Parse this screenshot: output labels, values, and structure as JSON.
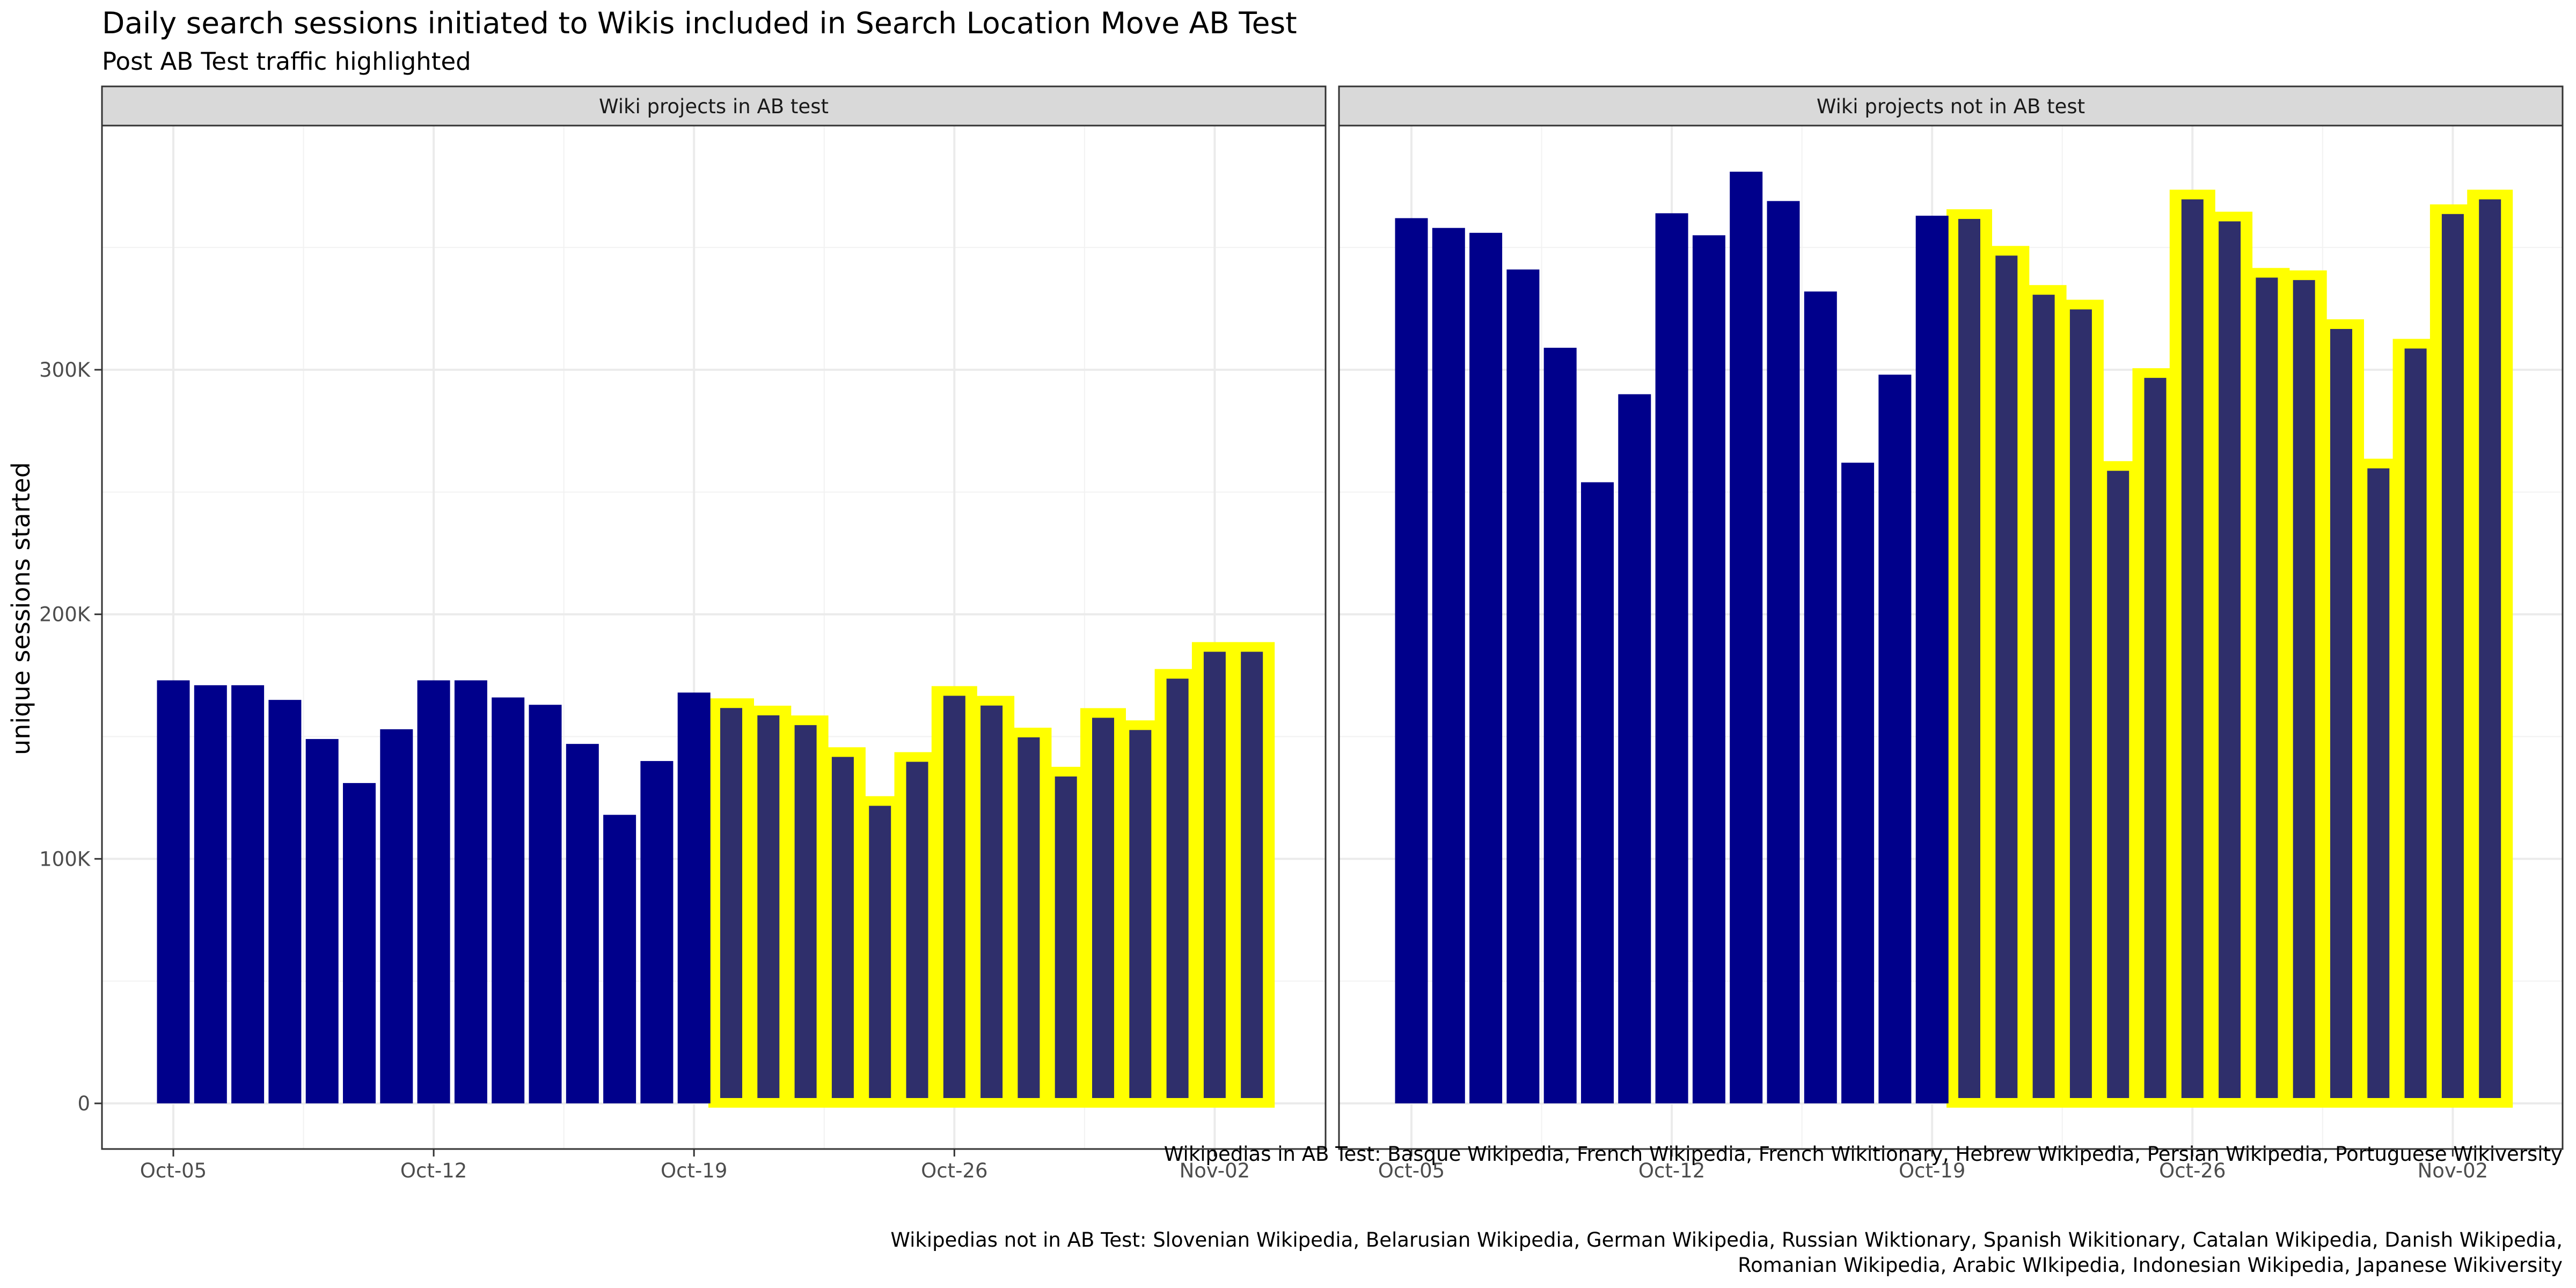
{
  "chart_data": {
    "type": "bar",
    "title": "Daily search sessions initiated to Wikis included in Search Location Move AB Test",
    "subtitle": "Post AB Test traffic highlighted",
    "ylabel": "unique sessions started",
    "xlabel": "",
    "ylim": [
      0,
      400000
    ],
    "y_ticks": [
      0,
      100000,
      200000,
      300000
    ],
    "y_tick_labels": [
      "0",
      "100K",
      "200K",
      "300K"
    ],
    "x_tick_labels": [
      "Oct-05",
      "Oct-12",
      "Oct-19",
      "Oct-26",
      "Nov-02"
    ],
    "x_tick_day_index": [
      0,
      7,
      14,
      21,
      28
    ],
    "grid": true,
    "colors": {
      "bar": "#00008b",
      "highlight_outline": "#ffff00",
      "highlight_fill": "#2f2f6b",
      "strip_fill": "#d9d9d9"
    },
    "highlight_from_day_index": 15,
    "panels": [
      {
        "strip_label": "Wiki projects in AB test",
        "values": [
          173000,
          171000,
          171000,
          165000,
          149000,
          131000,
          153000,
          173000,
          173000,
          166000,
          163000,
          147000,
          118000,
          140000,
          168000,
          163000,
          160000,
          156000,
          143000,
          123000,
          141000,
          168000,
          164000,
          151000,
          135000,
          159000,
          154000,
          175000,
          186000,
          186000
        ]
      },
      {
        "strip_label": "Wiki projects not in AB test",
        "values": [
          362000,
          358000,
          356000,
          341000,
          309000,
          254000,
          290000,
          364000,
          355000,
          381000,
          369000,
          332000,
          262000,
          298000,
          363000,
          363000,
          348000,
          332000,
          326000,
          260000,
          298000,
          371000,
          362000,
          339000,
          338000,
          318000,
          261000,
          310000,
          365000,
          371000
        ]
      }
    ]
  },
  "caption": {
    "in_test": "Wikipedias in AB Test: Basque Wikipedia, French Wikipedia, French Wikitionary, Hebrew Wikipedia, Persian Wikipedia, Portuguese Wikiversity",
    "not_in_test_line1": "Wikipedias not in AB Test: Slovenian Wikipedia, Belarusian Wikipedia, German Wikipedia, Russian Wiktionary, Spanish Wikitionary, Catalan Wikipedia, Danish Wikipedia,",
    "not_in_test_line2": "Romanian Wikipedia, Arabic WIkipedia, Indonesian Wikipedia, Japanese Wikiversity"
  }
}
